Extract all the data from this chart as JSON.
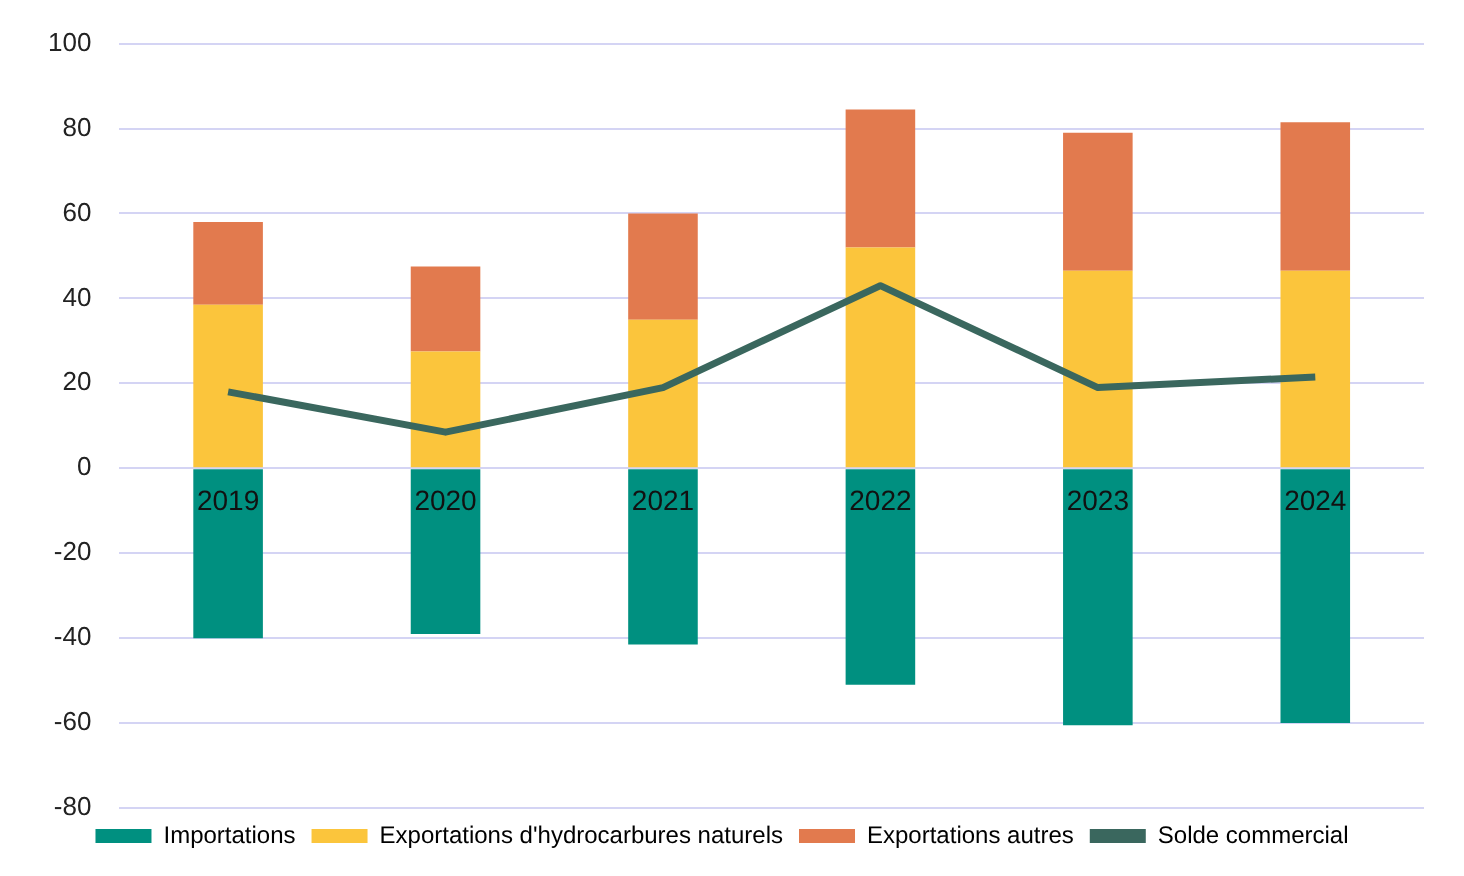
{
  "chart_data": {
    "type": "bar",
    "stacked": true,
    "categories": [
      "2019",
      "2020",
      "2021",
      "2022",
      "2023",
      "2024"
    ],
    "series": [
      {
        "name": "Importations",
        "color": "#009080",
        "values": [
          -40,
          -39,
          -41.5,
          -51,
          -60.5,
          -60
        ]
      },
      {
        "name": "Exportations d'hydrocarbures naturels",
        "color": "#fbc53c",
        "values": [
          38.5,
          27.5,
          35,
          52,
          46.5,
          46.5
        ]
      },
      {
        "name": "Exportations autres",
        "color": "#e27a4e",
        "values": [
          19.5,
          20,
          25,
          32.5,
          32.5,
          35
        ]
      },
      {
        "name": "Solde commercial",
        "type": "line",
        "color": "#3a675e",
        "values": [
          18,
          8.5,
          19,
          43,
          19,
          21.5
        ]
      }
    ],
    "ylim": [
      -80,
      100
    ],
    "yticks": [
      -80,
      -60,
      -40,
      -20,
      0,
      20,
      40,
      60,
      80,
      100
    ],
    "grid": "y",
    "legend": "bottom",
    "marker": "none"
  }
}
